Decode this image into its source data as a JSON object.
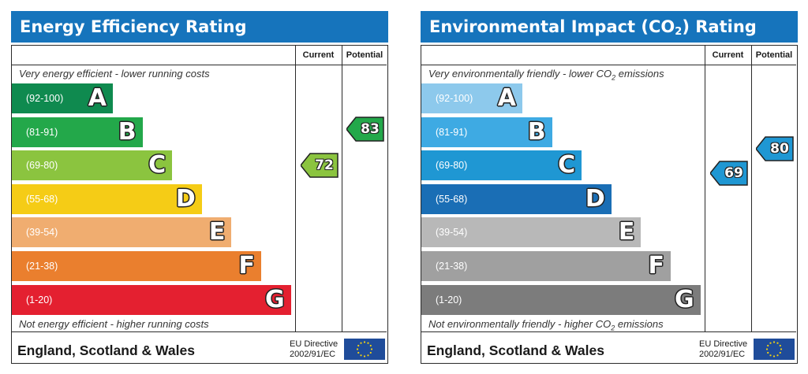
{
  "chart_data": [
    {
      "type": "bar",
      "title": "Energy Efficiency Rating",
      "columns": [
        "Current",
        "Potential"
      ],
      "top_note": "Very energy efficient - lower running costs",
      "bottom_note": "Not energy efficient - higher running costs",
      "bands": [
        {
          "range": "(92-100)",
          "letter": "A",
          "color": "#0f8a4f"
        },
        {
          "range": "(81-91)",
          "letter": "B",
          "color": "#23a84a"
        },
        {
          "range": "(69-80)",
          "letter": "C",
          "color": "#8bc43f"
        },
        {
          "range": "(55-68)",
          "letter": "D",
          "color": "#f5cc16"
        },
        {
          "range": "(39-54)",
          "letter": "E",
          "color": "#f0ad70"
        },
        {
          "range": "(21-38)",
          "letter": "F",
          "color": "#ea7f2e"
        },
        {
          "range": "(1-20)",
          "letter": "G",
          "color": "#e42030"
        }
      ],
      "current": {
        "value": 72,
        "band": "C",
        "color": "#8bc43f"
      },
      "potential": {
        "value": 83,
        "band": "B",
        "color": "#23a84a"
      },
      "footer_region": "England, Scotland & Wales",
      "directive_line1": "EU Directive",
      "directive_line2": "2002/91/EC"
    },
    {
      "type": "bar",
      "title_prefix": "Environmental Impact (CO",
      "title_sub": "2",
      "title_suffix": ") Rating",
      "columns": [
        "Current",
        "Potential"
      ],
      "top_note_prefix": "Very environmentally friendly - lower CO",
      "top_note_sub": "2",
      "top_note_suffix": " emissions",
      "bottom_note_prefix": "Not environmentally friendly - higher CO",
      "bottom_note_sub": "2",
      "bottom_note_suffix": " emissions",
      "bands": [
        {
          "range": "(92-100)",
          "letter": "A",
          "color": "#8dc9ec"
        },
        {
          "range": "(81-91)",
          "letter": "B",
          "color": "#3eaae3"
        },
        {
          "range": "(69-80)",
          "letter": "C",
          "color": "#1f97d3"
        },
        {
          "range": "(55-68)",
          "letter": "D",
          "color": "#1a6eb5"
        },
        {
          "range": "(39-54)",
          "letter": "E",
          "color": "#b8b8b8"
        },
        {
          "range": "(21-38)",
          "letter": "F",
          "color": "#a0a0a0"
        },
        {
          "range": "(1-20)",
          "letter": "G",
          "color": "#7c7c7c"
        }
      ],
      "current": {
        "value": 69,
        "band": "C",
        "color": "#1f97d3"
      },
      "potential": {
        "value": 80,
        "band": "C",
        "color": "#1f97d3"
      },
      "footer_region": "England, Scotland & Wales",
      "directive_line1": "EU Directive",
      "directive_line2": "2002/91/EC"
    }
  ],
  "colors": {
    "header": "#1674bc",
    "flag": "#1f4c9a",
    "flag_stars": "#f5d30f"
  },
  "icons": {
    "flag": "eu-flag-icon"
  }
}
